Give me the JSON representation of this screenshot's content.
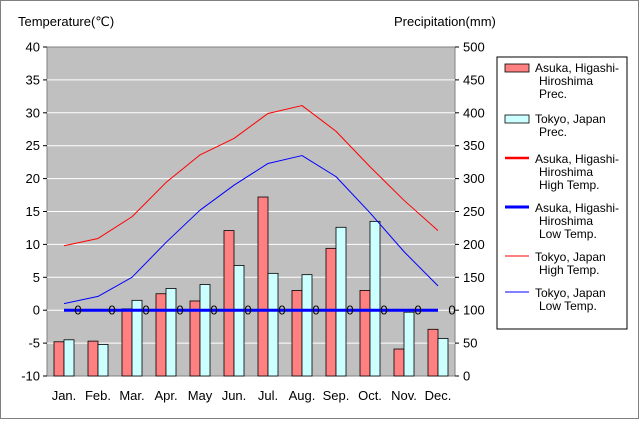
{
  "chart_data": {
    "type": "bar+line",
    "y_left_label": "Temperature(℃)",
    "y_right_label": "Precipitation(mm)",
    "y_left_range": [
      -10,
      40
    ],
    "y_left_ticks": [
      "40",
      "35",
      "30",
      "25",
      "20",
      "15",
      "10",
      "5",
      "0",
      "-5",
      "-10"
    ],
    "y_right_range": [
      0,
      500
    ],
    "y_right_ticks": [
      "500",
      "450",
      "400",
      "350",
      "300",
      "250",
      "200",
      "150",
      "100",
      "50",
      "0"
    ],
    "categories": [
      "Jan.",
      "Feb.",
      "Mar.",
      "Apr.",
      "May",
      "Jun.",
      "Jul.",
      "Aug.",
      "Sep.",
      "Oct.",
      "Nov.",
      "Dec."
    ],
    "zero_marker": "0",
    "legend_position": "right",
    "bars": [
      {
        "name": "Asuka, Higashi-Hiroshima Prec.",
        "legend_lines": [
          "Asuka, Higashi-",
          "Hiroshima",
          "Prec."
        ],
        "color": "#ff8080",
        "values": [
          52,
          53,
          102,
          125,
          114,
          221,
          272,
          130,
          194,
          130,
          41,
          71
        ]
      },
      {
        "name": "Tokyo, Japan Prec.",
        "legend_lines": [
          "Tokyo, Japan",
          "Prec."
        ],
        "color": "#ccffff",
        "values": [
          55,
          48,
          115,
          133,
          139,
          168,
          156,
          154,
          226,
          235,
          97,
          57
        ]
      }
    ],
    "lines": [
      {
        "name": "Asuka, Higashi-Hiroshima High Temp.",
        "legend_lines": [
          "Asuka, Higashi-",
          "Hiroshima",
          "High Temp."
        ],
        "color": "#ff0000",
        "width": 2.5,
        "values": [
          null,
          null,
          null,
          null,
          null,
          null,
          null,
          null,
          null,
          null,
          null,
          null
        ],
        "flat_value": 0
      },
      {
        "name": "Asuka, Higashi-Hiroshima Low Temp.",
        "legend_lines": [
          "Asuka, Higashi-",
          "Hiroshima",
          "Low Temp."
        ],
        "color": "#0000ff",
        "width": 3,
        "values": [
          0,
          0,
          0,
          0,
          0,
          0,
          0,
          0,
          0,
          0,
          0,
          0
        ]
      },
      {
        "name": "Tokyo, Japan High Temp.",
        "legend_lines": [
          "Tokyo, Japan",
          "High Temp."
        ],
        "color": "#ff0000",
        "width": 1,
        "values": [
          9.8,
          10.9,
          14.2,
          19.4,
          23.6,
          26.1,
          29.9,
          31.1,
          27.2,
          21.8,
          16.7,
          12.1
        ]
      },
      {
        "name": "Tokyo, Japan Low Temp.",
        "legend_lines": [
          "Tokyo, Japan",
          "Low Temp."
        ],
        "color": "#0000ff",
        "width": 1,
        "values": [
          1.0,
          2.1,
          5.0,
          10.3,
          15.2,
          19.0,
          22.3,
          23.5,
          20.3,
          14.8,
          8.9,
          3.7
        ]
      }
    ]
  }
}
